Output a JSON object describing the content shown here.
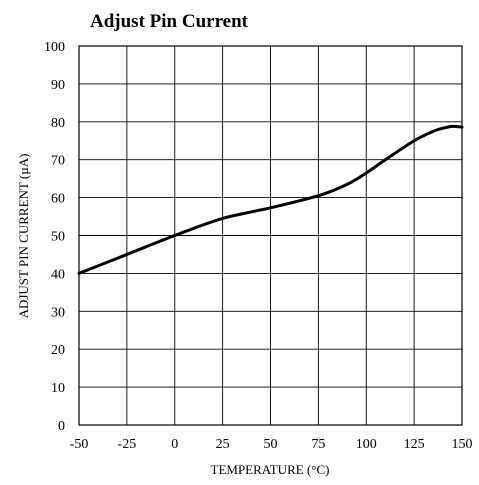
{
  "chart_data": {
    "type": "line",
    "title": "Adjust Pin Current",
    "xlabel": "TEMPERATURE (°C)",
    "ylabel": "ADJUST PIN CURRENT (µA)",
    "xlim": [
      -50,
      150
    ],
    "ylim": [
      0,
      100
    ],
    "grid": true,
    "x_ticks": [
      -50,
      -25,
      0,
      25,
      50,
      75,
      100,
      125,
      150
    ],
    "y_ticks": [
      0,
      10,
      20,
      30,
      40,
      50,
      60,
      70,
      80,
      90,
      100
    ],
    "series": [
      {
        "x": [
          -50,
          -25,
          0,
          25,
          50,
          75,
          90,
          100,
          110,
          125,
          135,
          140,
          145,
          150
        ],
        "y": [
          40,
          45,
          50,
          54.5,
          57.3,
          60.5,
          63.5,
          66.5,
          70,
          75,
          77.5,
          78.3,
          78.8,
          78.6
        ]
      }
    ],
    "line_color": "#000000"
  }
}
